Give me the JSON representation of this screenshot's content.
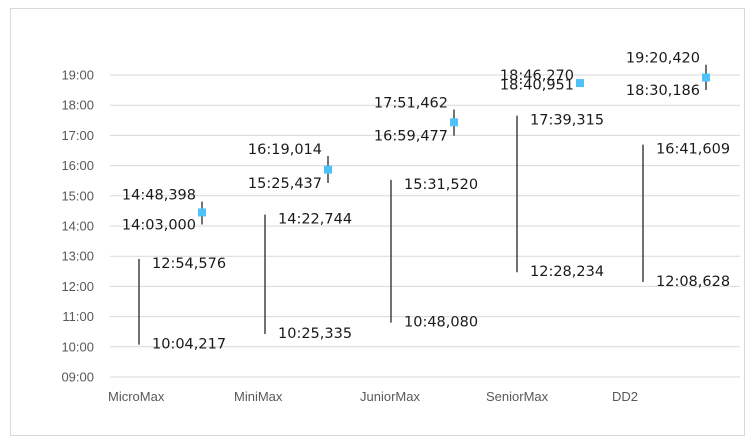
{
  "chart_data": {
    "type": "stock",
    "y_axis": {
      "min": "09:00",
      "max": "19:00",
      "tick_labels": [
        "09:00",
        "10:00",
        "11:00",
        "12:00",
        "13:00",
        "14:00",
        "15:00",
        "16:00",
        "17:00",
        "18:00",
        "19:00"
      ]
    },
    "grid": true,
    "categories": [
      "MicroMax",
      "MiniMax",
      "JuniorMax",
      "SeniorMax",
      "DD2"
    ],
    "series": [
      {
        "values": [
          {
            "low": "10:04,217",
            "high": "12:54,576"
          },
          {
            "low": "10:25,335",
            "high": "14:22,744"
          },
          {
            "low": "10:48,080",
            "high": "15:31,520"
          },
          {
            "low": "12:28,234",
            "high": "17:39,315"
          },
          {
            "low": "12:08,628",
            "high": "16:41,609"
          }
        ]
      },
      {
        "values": [
          {
            "low": "14:03,000",
            "high": "14:48,398",
            "close": "14:27"
          },
          {
            "low": "15:25,437",
            "high": "16:19,014",
            "close": "15:52"
          },
          {
            "low": "16:59,477",
            "high": "17:51,462",
            "close": "17:26"
          },
          {
            "low": "18:40,951",
            "high": "18:46,270",
            "close": "18:44"
          },
          {
            "low": "18:30,186",
            "high": "19:20,420",
            "close": "18:55"
          }
        ]
      }
    ],
    "colors": {
      "marker": "#4fc3f7",
      "line": "#262626",
      "grid": "#d9d9d9",
      "text": "#595959"
    }
  }
}
